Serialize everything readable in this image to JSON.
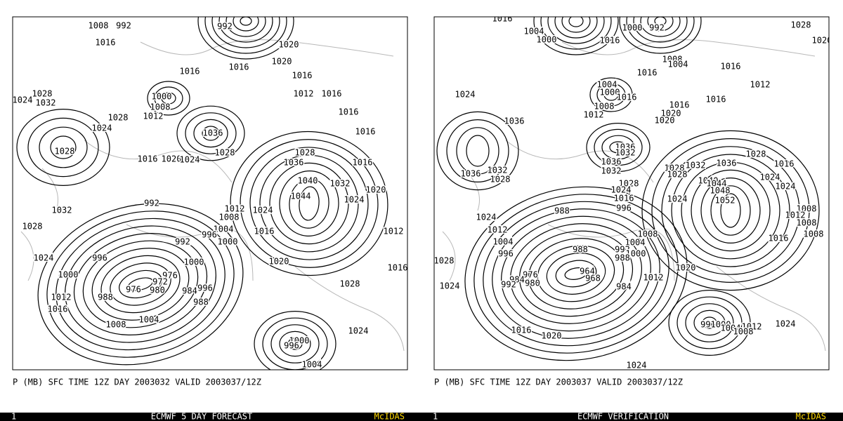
{
  "panels": [
    {
      "caption": "P (MB) SFC TIME 12Z DAY 2003032 VALID 2003037/12Z",
      "footer_number": "1",
      "footer_title": "ECMWF 5 DAY FORECAST",
      "footer_brand": "McIDAS",
      "contour_labels": [
        1008,
        992,
        1016,
        992,
        1020,
        1020,
        1016,
        1016,
        1016,
        1012,
        1016,
        1028,
        1024,
        1032,
        1000,
        1008,
        1012,
        1028,
        1016,
        1024,
        1036,
        1016,
        1028,
        1016,
        1020,
        1024,
        1028,
        1028,
        1036,
        1016,
        1040,
        1032,
        1020,
        992,
        1044,
        1024,
        1032,
        1012,
        1008,
        1024,
        1028,
        1004,
        996,
        1016,
        1000,
        1012,
        992,
        996,
        1024,
        1020,
        1000,
        1000,
        976,
        972,
        976,
        980,
        984,
        996,
        1016,
        988,
        1012,
        1028,
        988,
        1016,
        1004,
        1008,
        1024,
        1000,
        996,
        1004
      ]
    },
    {
      "caption": "P (MB) SFC TIME 12Z DAY 2003037 VALID 2003037/12Z",
      "footer_number": "1",
      "footer_title": "ECMWF VERIFICATION",
      "footer_brand": "McIDAS",
      "contour_labels": [
        1016,
        1004,
        1000,
        1000,
        992,
        1016,
        1028,
        1020,
        1008,
        1004,
        1016,
        1016,
        1004,
        1000,
        1012,
        1024,
        1016,
        1008,
        1016,
        1012,
        1020,
        1016,
        1020,
        1036,
        1036,
        1032,
        1028,
        1036,
        1032,
        1036,
        1016,
        1036,
        1032,
        1032,
        1028,
        1028,
        1028,
        1024,
        1024,
        1028,
        1040,
        1044,
        1048,
        1024,
        1016,
        1052,
        1024,
        996,
        988,
        1024,
        1008,
        1012,
        1008,
        1012,
        1008,
        1008,
        1016,
        1004,
        1004,
        988,
        992,
        1000,
        988,
        996,
        1020,
        964,
        976,
        968,
        984,
        980,
        992,
        1012,
        984,
        1024,
        1016,
        1020,
        996,
        1000,
        1004,
        1012,
        1008,
        1024,
        1024,
        1028
      ]
    }
  ]
}
